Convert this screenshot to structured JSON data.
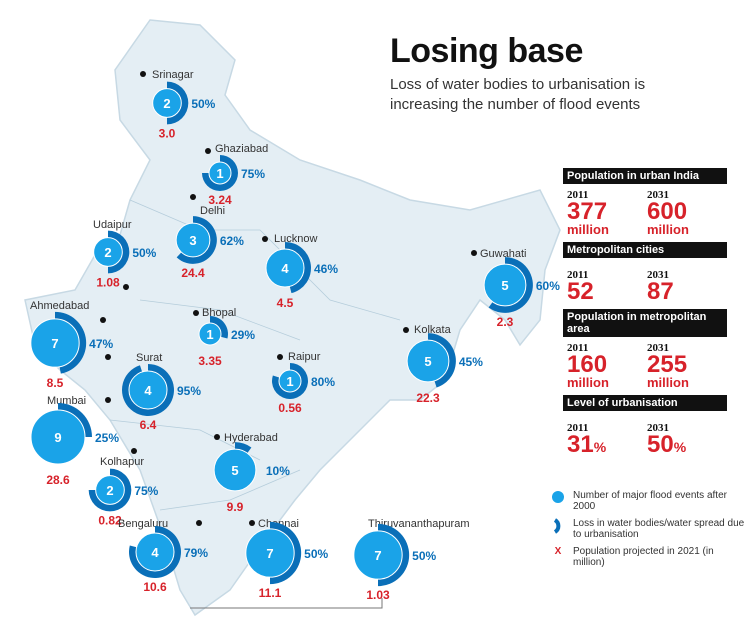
{
  "title": "Losing base",
  "subtitle": [
    "Loss of water bodies to urbanisation is",
    "increasing the number of flood events"
  ],
  "stats": [
    {
      "heading": "Population in urban India",
      "y1": "2011",
      "v1": "377",
      "u1": "million",
      "y2": "2031",
      "v2": "600",
      "u2": "million"
    },
    {
      "heading": "Metropolitan cities",
      "y1": "2011",
      "v1": "52",
      "u1": "",
      "y2": "2031",
      "v2": "87",
      "u2": ""
    },
    {
      "heading": "Population in metropolitan area",
      "y1": "2011",
      "v1": "160",
      "u1": "million",
      "y2": "2031",
      "v2": "255",
      "u2": "million"
    },
    {
      "heading": "Level of urbanisation",
      "y1": "2011",
      "v1": "31",
      "s1": "%",
      "y2": "2031",
      "v2": "50",
      "s2": "%"
    }
  ],
  "legend": {
    "floods": "Number of major flood events after 2000",
    "loss": "Loss in water bodies/water spread  due to urbanisation",
    "pop_mark": "X",
    "pop": "Population projected in 2021 (in million)"
  },
  "colors": {
    "flood": "#1aa3e8",
    "loss": "#0a6fb8",
    "pop": "#d7222a"
  },
  "cities": [
    {
      "name": "Srinagar",
      "floods": 2,
      "loss_pct": 50,
      "loss": "50%",
      "pop": "3.0"
    },
    {
      "name": "Ghaziabad",
      "floods": 1,
      "loss_pct": 75,
      "loss": "75%",
      "pop": "3.24"
    },
    {
      "name": "Delhi",
      "floods": 3,
      "loss_pct": 62,
      "loss": "62%",
      "pop": "24.4"
    },
    {
      "name": "Udaipur",
      "floods": 2,
      "loss_pct": 50,
      "loss": "50%",
      "pop": "1.08"
    },
    {
      "name": "Lucknow",
      "floods": 4,
      "loss_pct": 46,
      "loss": "46%",
      "pop": "4.5"
    },
    {
      "name": "Guwahati",
      "floods": 5,
      "loss_pct": 60,
      "loss": "60%",
      "pop": "2.3"
    },
    {
      "name": "Ahmedabad",
      "floods": 7,
      "loss_pct": 47,
      "loss": "47%",
      "pop": "8.5"
    },
    {
      "name": "Bhopal",
      "floods": 1,
      "loss_pct": 29,
      "loss": "29%",
      "pop": "3.35"
    },
    {
      "name": "Kolkata",
      "floods": 5,
      "loss_pct": 45,
      "loss": "45%",
      "pop": "22.3"
    },
    {
      "name": "Raipur",
      "floods": 1,
      "loss_pct": 80,
      "loss": "80%",
      "pop": "0.56"
    },
    {
      "name": "Surat",
      "floods": 4,
      "loss_pct": 95,
      "loss": "95%",
      "pop": "6.4"
    },
    {
      "name": "Mumbai",
      "floods": 9,
      "loss_pct": 25,
      "loss": "25%",
      "pop": "28.6"
    },
    {
      "name": "Hyderabad",
      "floods": 5,
      "loss_pct": 10,
      "loss": "10%",
      "pop": "9.9"
    },
    {
      "name": "Kolhapur",
      "floods": 2,
      "loss_pct": 75,
      "loss": "75%",
      "pop": "0.82"
    },
    {
      "name": "Bengaluru",
      "floods": 4,
      "loss_pct": 79,
      "loss": "79%",
      "pop": "10.6"
    },
    {
      "name": "Chennai",
      "floods": 7,
      "loss_pct": 50,
      "loss": "50%",
      "pop": "11.1"
    },
    {
      "name": "Thiruvananthapuram",
      "floods": 7,
      "loss_pct": 50,
      "loss": "50%",
      "pop": "1.03"
    }
  ]
}
